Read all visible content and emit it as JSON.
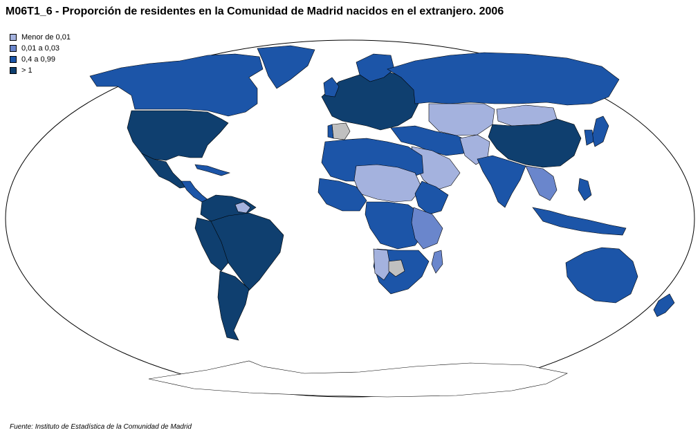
{
  "title": "M06T1_6 - Proporción de residentes en la Comunidad de Madrid nacidos en el extranjero. 2006",
  "legend": [
    {
      "label": "Menor de 0,01",
      "color": "#a4b2de"
    },
    {
      "label": "0,01 a 0,03",
      "color": "#6a86cc"
    },
    {
      "label": "0,4 a 0,99",
      "color": "#1c55a8"
    },
    {
      "label": "> 1",
      "color": "#0f3f6f"
    }
  ],
  "source": "Fuente: Instituto de Estadística de la Comunidad de Madrid",
  "colors": {
    "ocean": "#ffffff",
    "outline": "#000000",
    "no_data": "#c0c0c0",
    "antarctica": "#ffffff"
  }
}
